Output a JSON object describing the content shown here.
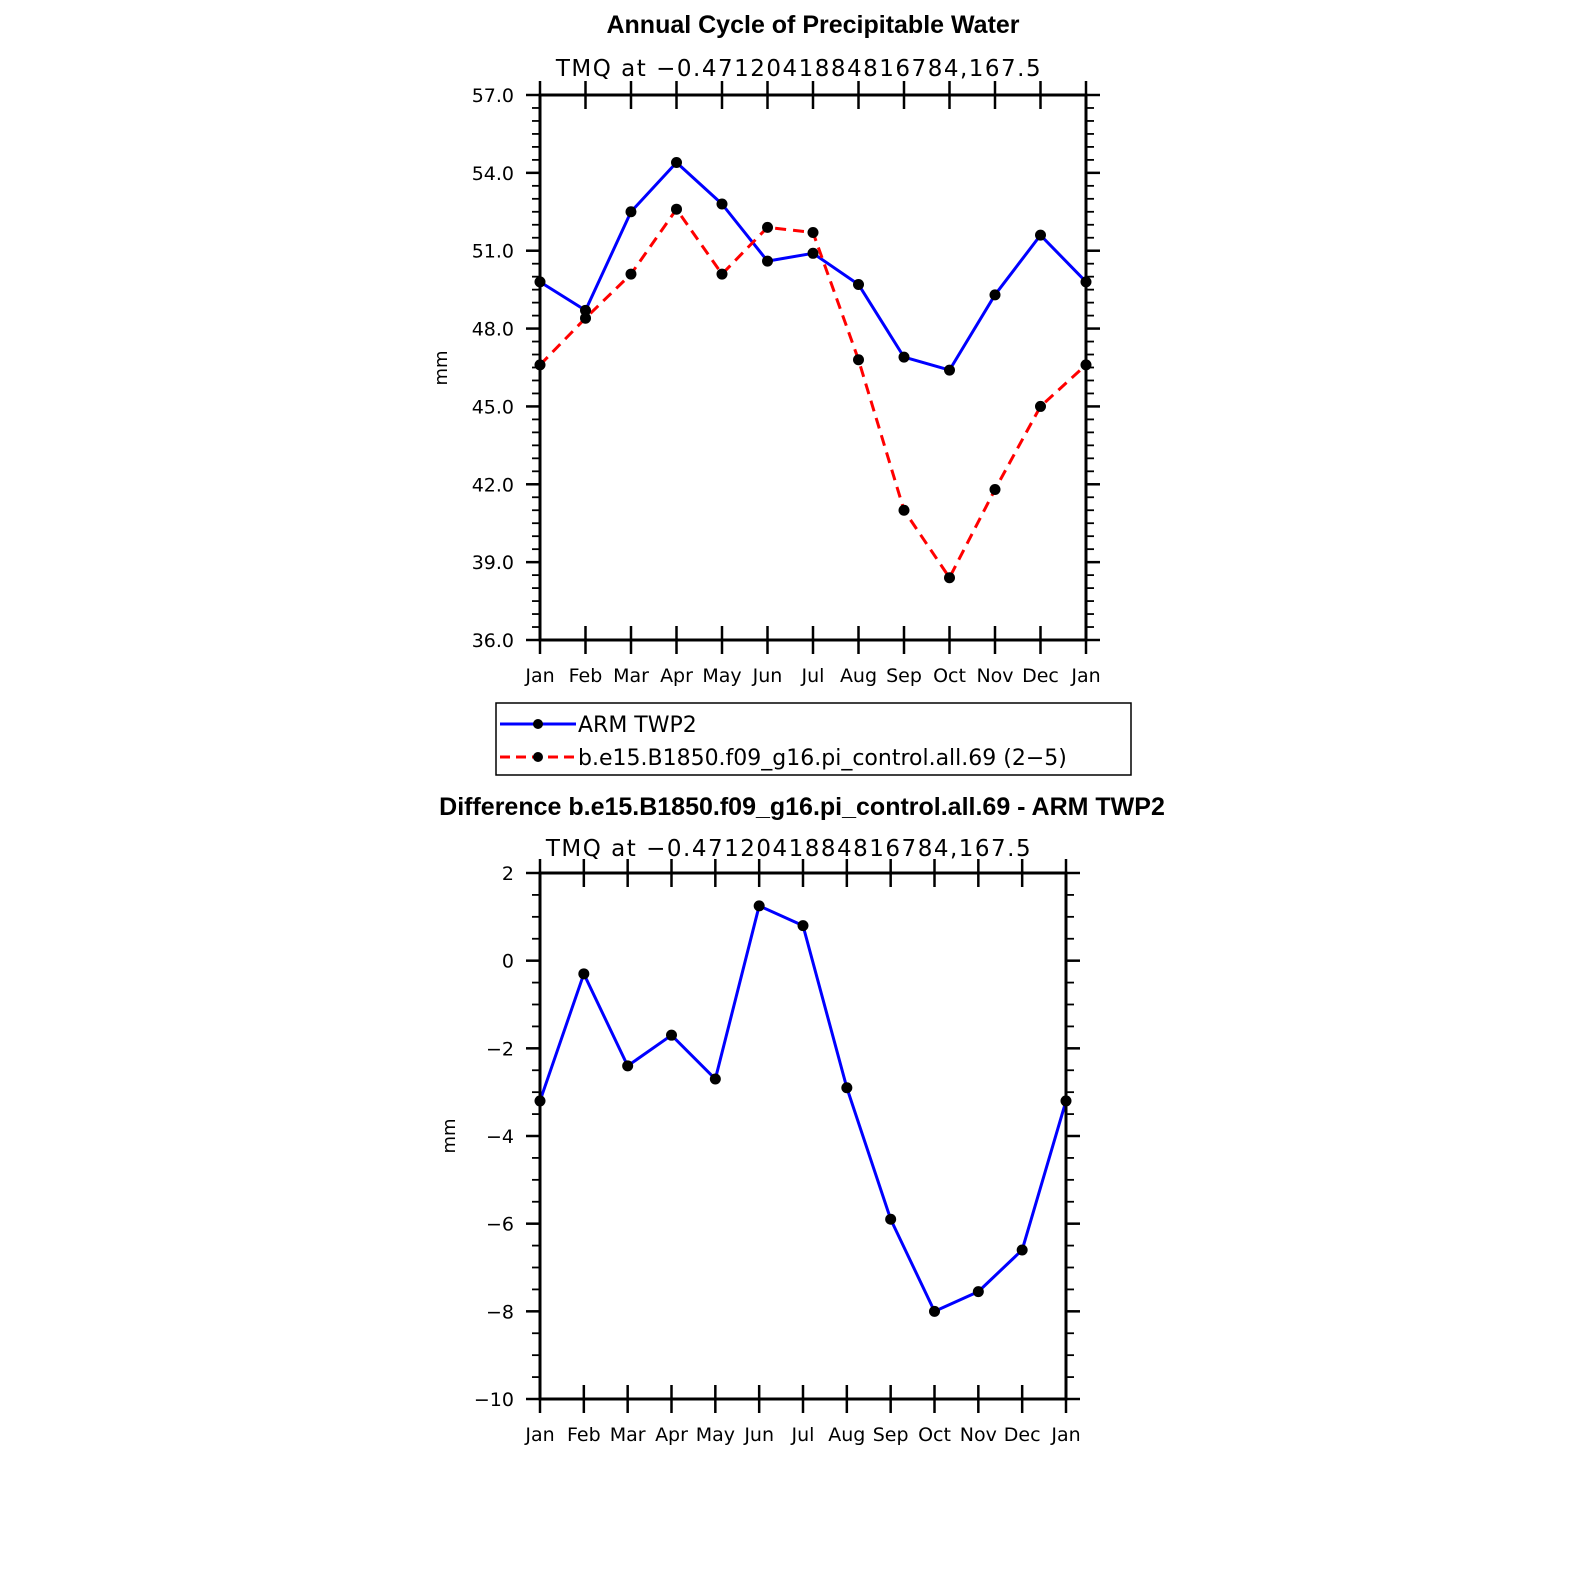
{
  "chart_data": [
    {
      "type": "line",
      "title": "Annual Cycle of Precipitable Water",
      "subtitle": "TMQ  at  −0.4712041884816784,167.5",
      "xlabel": "",
      "ylabel": "mm",
      "categories": [
        "Jan",
        "Feb",
        "Mar",
        "Apr",
        "May",
        "Jun",
        "Jul",
        "Aug",
        "Sep",
        "Oct",
        "Nov",
        "Dec",
        "Jan"
      ],
      "ylim": [
        36.0,
        57.0
      ],
      "yticks": [
        36.0,
        39.0,
        42.0,
        45.0,
        48.0,
        51.0,
        54.0,
        57.0
      ],
      "ytick_labels": [
        "36.0",
        "39.0",
        "42.0",
        "45.0",
        "48.0",
        "51.0",
        "54.0",
        "57.0"
      ],
      "series": [
        {
          "name": "ARM  TWP2",
          "color": "#0000ff",
          "dash": "solid",
          "values": [
            49.8,
            48.7,
            52.5,
            54.4,
            52.8,
            50.6,
            50.9,
            49.7,
            46.9,
            46.4,
            49.3,
            51.6,
            49.8
          ]
        },
        {
          "name": "b.e15.B1850.f09_g16.pi_control.all.69  (2−5)",
          "color": "#ff0000",
          "dash": "dashed",
          "values": [
            46.6,
            48.4,
            50.1,
            52.6,
            50.1,
            51.9,
            51.7,
            46.8,
            41.0,
            38.4,
            41.8,
            45.0,
            46.6
          ]
        }
      ],
      "legend": "below"
    },
    {
      "type": "line",
      "title": "Difference b.e15.B1850.f09_g16.pi_control.all.69 - ARM TWP2",
      "subtitle": "TMQ  at  −0.4712041884816784,167.5",
      "xlabel": "",
      "ylabel": "mm",
      "categories": [
        "Jan",
        "Feb",
        "Mar",
        "Apr",
        "May",
        "Jun",
        "Jul",
        "Aug",
        "Sep",
        "Oct",
        "Nov",
        "Dec",
        "Jan"
      ],
      "ylim": [
        -10,
        2
      ],
      "yticks": [
        -10,
        -8,
        -6,
        -4,
        -2,
        0,
        2
      ],
      "ytick_labels": [
        "−10",
        "−8",
        "−6",
        "−4",
        "−2",
        "0",
        "2"
      ],
      "series": [
        {
          "name": "Difference",
          "color": "#0000ff",
          "dash": "solid",
          "values": [
            -3.2,
            -0.3,
            -2.4,
            -1.7,
            -2.7,
            1.25,
            0.8,
            -2.9,
            -5.9,
            -8.0,
            -7.55,
            -6.6,
            -3.2
          ]
        }
      ]
    }
  ]
}
